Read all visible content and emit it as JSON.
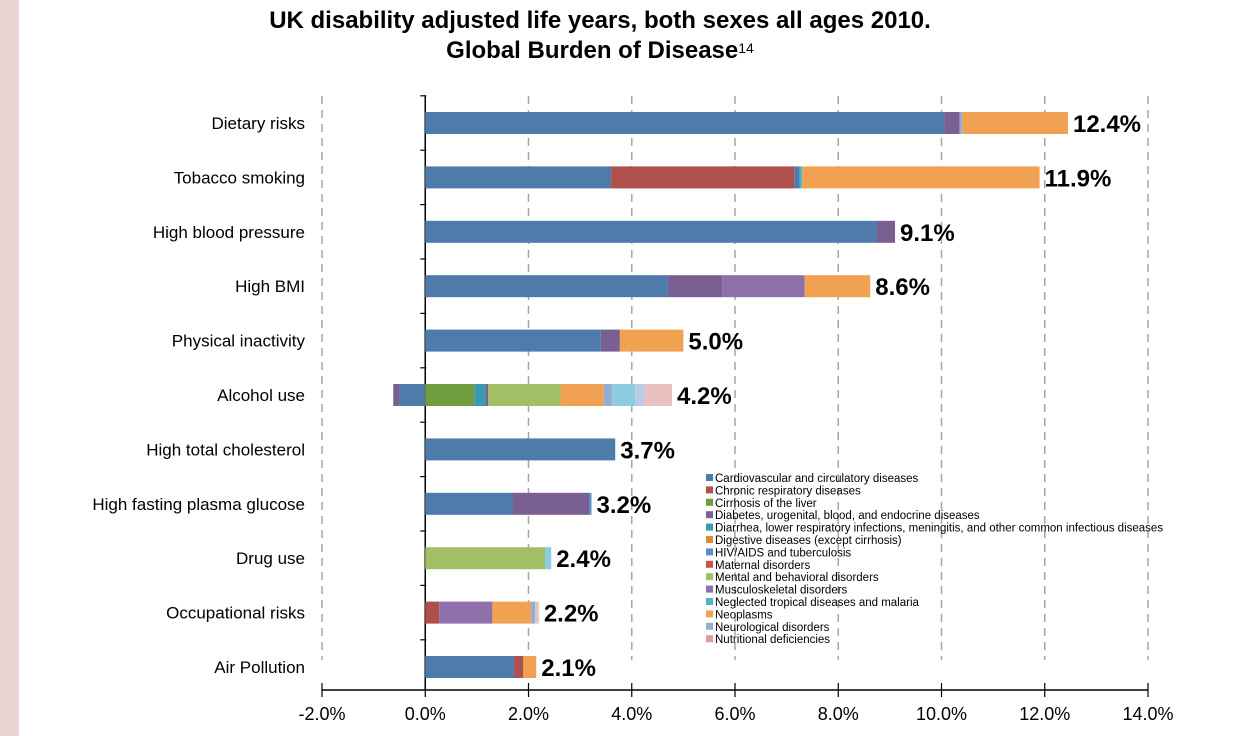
{
  "chart_data": {
    "type": "bar",
    "stacked": true,
    "orientation": "horizontal",
    "title_line1": "UK disability adjusted life years, both sexes all ages 2010.",
    "title_line2": "Global Burden of Disease",
    "title_superscript": "14",
    "xlabel": "",
    "ylabel": "",
    "xlim": [
      -2.0,
      14.0
    ],
    "x_ticks": [
      "-2.0%",
      "0.0%",
      "2.0%",
      "4.0%",
      "6.0%",
      "8.0%",
      "10.0%",
      "12.0%",
      "14.0%"
    ],
    "grid": "vertical dashed",
    "legend_position": "bottom-right inside",
    "legend": [
      {
        "name": "Cardiovascular and circulatory diseases",
        "color": "#4f7bab"
      },
      {
        "name": "Chronic respiratory diseases",
        "color": "#b0504d"
      },
      {
        "name": "Cirrhosis of the liver",
        "color": "#6f9c3f"
      },
      {
        "name": "Diabetes, urogenital, blood, and endocrine diseases",
        "color": "#7a5f92"
      },
      {
        "name": "Diarrhea, lower respiratory infections, meningitis, and other common infectious diseases",
        "color": "#3a9ab0"
      },
      {
        "name": "Digestive diseases (except cirrhosis)",
        "color": "#e08a36"
      },
      {
        "name": "HIV/AIDS and tuberculosis",
        "color": "#5a8fc9"
      },
      {
        "name": "Maternal disorders",
        "color": "#c9534f"
      },
      {
        "name": "Mental and behavioral disorders",
        "color": "#a3bf65"
      },
      {
        "name": "Musculoskeletal disorders",
        "color": "#8e70ab"
      },
      {
        "name": "Neglected tropical diseases and malaria",
        "color": "#52b2c9"
      },
      {
        "name": "Neoplasms",
        "color": "#f0a252"
      },
      {
        "name": "Neurological disorders",
        "color": "#93add6"
      },
      {
        "name": "Nutritional deficiencies",
        "color": "#e29a98"
      }
    ],
    "categories": [
      {
        "name": "Dietary risks",
        "total_label": "12.4%",
        "segments": [
          [
            "#4f7bab",
            -0.0,
            10.05
          ],
          [
            "#7a5f92",
            10.05,
            10.35
          ],
          [
            "#93add6",
            10.35,
            10.4
          ],
          [
            "#f0a252",
            10.4,
            12.45
          ]
        ]
      },
      {
        "name": "Tobacco smoking",
        "total_label": "11.9%",
        "segments": [
          [
            "#4f7bab",
            0.0,
            3.6
          ],
          [
            "#b0504d",
            3.6,
            7.15
          ],
          [
            "#4f7bab",
            7.15,
            7.25
          ],
          [
            "#52b2c9",
            7.25,
            7.3
          ],
          [
            "#f0a252",
            7.3,
            11.9
          ]
        ]
      },
      {
        "name": "High blood pressure",
        "total_label": "9.1%",
        "segments": [
          [
            "#4f7bab",
            0.0,
            8.75
          ],
          [
            "#7a5f92",
            8.75,
            9.1
          ]
        ]
      },
      {
        "name": "High BMI",
        "total_label": "8.6%",
        "segments": [
          [
            "#4f7bab",
            0.0,
            4.7
          ],
          [
            "#7a5f92",
            4.7,
            5.75
          ],
          [
            "#8e70ab",
            5.75,
            7.35
          ],
          [
            "#f0a252",
            7.35,
            8.62
          ]
        ]
      },
      {
        "name": "Physical inactivity",
        "total_label": "5.0%",
        "segments": [
          [
            "#4f7bab",
            0.0,
            3.4
          ],
          [
            "#7a5f92",
            3.4,
            3.77
          ],
          [
            "#f0a252",
            3.77,
            5.0
          ]
        ]
      },
      {
        "name": "Alcohol use",
        "total_label": "4.2%",
        "segments": [
          [
            "#7a5f92",
            -0.62,
            -0.5
          ],
          [
            "#4f7bab",
            -0.5,
            0.0
          ],
          [
            "#6f9c3f",
            0.0,
            0.95
          ],
          [
            "#3a9ab0",
            0.95,
            1.17
          ],
          [
            "#7a5f92",
            1.17,
            1.22
          ],
          [
            "#a3bf65",
            1.22,
            2.62
          ],
          [
            "#f0a252",
            2.62,
            3.46
          ],
          [
            "#93add6",
            3.46,
            3.62
          ],
          [
            "#8fcbe0",
            3.62,
            4.07
          ],
          [
            "#bcc9e4",
            4.07,
            4.25
          ],
          [
            "#e9c1c0",
            4.25,
            4.78
          ]
        ]
      },
      {
        "name": "High total cholesterol",
        "total_label": "3.7%",
        "segments": [
          [
            "#4f7bab",
            0.0,
            3.68
          ]
        ]
      },
      {
        "name": "High fasting plasma glucose",
        "total_label": "3.2%",
        "segments": [
          [
            "#4f7bab",
            0.0,
            1.7
          ],
          [
            "#7a5f92",
            1.7,
            3.18
          ],
          [
            "#5a8fc9",
            3.18,
            3.22
          ]
        ]
      },
      {
        "name": "Drug use",
        "total_label": "2.4%",
        "segments": [
          [
            "#a3bf65",
            0.0,
            2.32
          ],
          [
            "#8fcbe0",
            2.32,
            2.44
          ]
        ]
      },
      {
        "name": "Occupational risks",
        "total_label": "2.2%",
        "segments": [
          [
            "#b0504d",
            0.0,
            0.27
          ],
          [
            "#8e70ab",
            0.27,
            1.3
          ],
          [
            "#f0a252",
            1.3,
            2.05
          ],
          [
            "#93add6",
            2.05,
            2.13
          ],
          [
            "#e9c1c0",
            2.13,
            2.2
          ]
        ]
      },
      {
        "name": "Air Pollution",
        "total_label": "2.1%",
        "segments": [
          [
            "#4f7bab",
            0.0,
            1.72
          ],
          [
            "#b0504d",
            1.72,
            1.9
          ],
          [
            "#f0a252",
            1.9,
            2.15
          ]
        ]
      }
    ]
  }
}
